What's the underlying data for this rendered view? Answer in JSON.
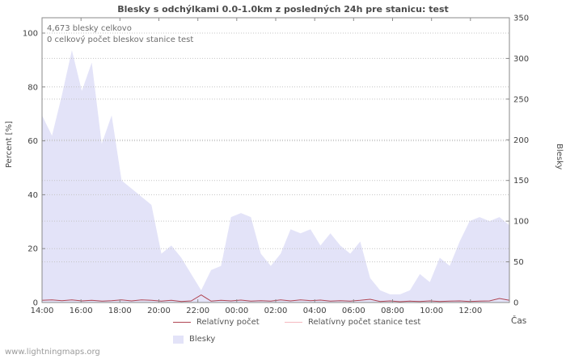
{
  "page": {
    "watermark": "www.lightningmaps.org"
  },
  "chart_data": {
    "type": "area",
    "title": "Blesky s odchýlkami 0.0-1.0km z posledných 24h pre stanicu: test",
    "annotations": [
      "4,673 blesky celkovo",
      "0 celkový počet bleskov stanice test"
    ],
    "xlabel": "Čas",
    "ylabel_left": "Percent  [%]",
    "ylabel_right": "Blesky",
    "ylim_left": [
      0,
      100
    ],
    "ylim_right": [
      0,
      350
    ],
    "left_ticks": [
      0,
      20,
      40,
      60,
      80,
      100
    ],
    "right_ticks": [
      0,
      50,
      100,
      150,
      200,
      250,
      300,
      350
    ],
    "x_tick_hours": [
      0,
      2,
      4,
      6,
      8,
      10,
      12,
      14,
      16,
      18,
      20,
      22
    ],
    "x_tick_labels": [
      "14:00",
      "16:00",
      "18:00",
      "20:00",
      "22:00",
      "00:00",
      "02:00",
      "04:00",
      "06:00",
      "08:00",
      "10:00",
      "12:00"
    ],
    "grid": "dotted-horizontal",
    "legend_position": "bottom",
    "times": [
      "14:00",
      "14:30",
      "15:00",
      "15:30",
      "16:00",
      "16:30",
      "17:00",
      "17:30",
      "18:00",
      "18:30",
      "19:00",
      "19:30",
      "20:00",
      "20:30",
      "21:00",
      "21:30",
      "22:00",
      "22:30",
      "23:00",
      "23:30",
      "00:00",
      "00:30",
      "01:00",
      "01:30",
      "02:00",
      "02:30",
      "03:00",
      "03:30",
      "04:00",
      "04:30",
      "05:00",
      "05:30",
      "06:00",
      "06:30",
      "07:00",
      "07:30",
      "08:00",
      "08:30",
      "09:00",
      "09:30",
      "10:00",
      "10:30",
      "11:00",
      "11:30",
      "12:00",
      "12:30",
      "13:00",
      "13:30"
    ],
    "series": [
      {
        "name": "Blesky",
        "type": "area",
        "axis": "right",
        "color": "#e3e3f8",
        "values": [
          230,
          205,
          255,
          310,
          260,
          295,
          195,
          230,
          150,
          140,
          130,
          120,
          60,
          70,
          55,
          35,
          15,
          40,
          45,
          105,
          110,
          105,
          60,
          45,
          60,
          90,
          85,
          90,
          70,
          85,
          70,
          60,
          75,
          30,
          15,
          10,
          10,
          15,
          35,
          25,
          55,
          45,
          75,
          100,
          105,
          100,
          105,
          95
        ]
      },
      {
        "name": "Relatívny počet",
        "type": "line",
        "axis": "left",
        "color": "#b04552",
        "values": [
          0.8,
          1.0,
          0.7,
          1.0,
          0.6,
          0.8,
          0.5,
          0.7,
          1.0,
          0.6,
          1.0,
          0.8,
          0.5,
          0.8,
          0.4,
          0.6,
          2.8,
          0.5,
          0.8,
          0.6,
          0.9,
          0.5,
          0.7,
          0.5,
          1.0,
          0.6,
          1.0,
          0.7,
          0.9,
          0.5,
          0.7,
          0.5,
          0.8,
          1.2,
          0.4,
          0.6,
          0.3,
          0.5,
          0.4,
          0.6,
          0.4,
          0.5,
          0.6,
          0.4,
          0.5,
          0.6,
          1.5,
          0.8
        ]
      },
      {
        "name": "Relatívny počet stanice test",
        "type": "line",
        "axis": "left",
        "color": "#f5b9c0",
        "values": [
          0,
          0,
          0,
          0,
          0,
          0,
          0,
          0,
          0,
          0,
          0,
          0,
          0,
          0,
          0,
          0,
          0,
          0,
          0,
          0,
          0,
          0,
          0,
          0,
          0,
          0,
          0,
          0,
          0,
          0,
          0,
          0,
          0,
          0,
          0,
          0,
          0,
          0,
          0,
          0,
          0,
          0,
          0,
          0,
          0,
          0,
          0,
          0
        ]
      }
    ]
  }
}
